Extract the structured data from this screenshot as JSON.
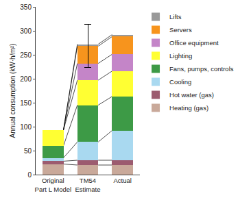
{
  "chart_data": {
    "type": "bar",
    "stacked": true,
    "grid": false,
    "legend": "right",
    "y_label": "Annual consumption (kW·h/m²)",
    "categories": [
      "Original Part L Model",
      "TM54 Estimate",
      "Actual"
    ],
    "ylim": [
      0,
      350
    ],
    "yticks": [
      0,
      50,
      100,
      150,
      200,
      250,
      300,
      350
    ],
    "series": [
      {
        "name": "Heating (gas)",
        "color": "#c9a99a",
        "values": [
          22,
          20,
          20
        ]
      },
      {
        "name": "Hot water (gas)",
        "color": "#9c5b6f",
        "values": [
          6,
          10,
          10
        ]
      },
      {
        "name": "Cooling",
        "color": "#a9d9f0",
        "values": [
          7,
          38,
          62
        ]
      },
      {
        "name": "Fans, pumps, controls",
        "color": "#3d9a46",
        "values": [
          25,
          77,
          71
        ]
      },
      {
        "name": "Lighting",
        "color": "#ffff33",
        "values": [
          33,
          52,
          53
        ]
      },
      {
        "name": "Office equipment",
        "color": "#c485c8",
        "values": [
          0,
          35,
          35
        ]
      },
      {
        "name": "Servers",
        "color": "#f7941d",
        "values": [
          0,
          36,
          37
        ]
      },
      {
        "name": "Lifts",
        "color": "#999999",
        "values": [
          0,
          4,
          4
        ]
      }
    ],
    "total_error": {
      "plus": [
        null,
        41,
        null
      ],
      "minus": [
        null,
        49,
        null
      ]
    }
  }
}
